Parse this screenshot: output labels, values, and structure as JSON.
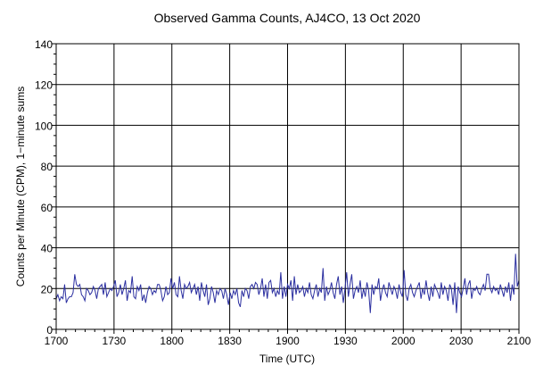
{
  "chart_data": {
    "type": "line",
    "title": "Observed Gamma Counts, AJ4CO, 13 Oct 2020",
    "xlabel": "Time (UTC)",
    "ylabel": "Counts per Minute (CPM), 1−minute sums",
    "x_ticks": [
      "1700",
      "1730",
      "1800",
      "1830",
      "1900",
      "1930",
      "2000",
      "2030",
      "2100"
    ],
    "y_ticks": [
      "0",
      "20",
      "40",
      "60",
      "80",
      "100",
      "120",
      "140"
    ],
    "xlim_minutes": [
      0,
      240
    ],
    "ylim": [
      0,
      140
    ],
    "grid": true,
    "legend": "none",
    "colors": {
      "series": "#2b2fa0",
      "grid": "#000000",
      "axis": "#000000"
    },
    "series": [
      {
        "values": [
          15,
          17,
          14,
          16,
          15,
          22,
          13,
          15,
          16,
          16,
          18,
          27,
          22,
          21,
          22,
          17,
          16,
          14,
          20,
          19,
          17,
          18,
          21,
          19,
          15,
          20,
          21,
          22,
          17,
          23,
          16,
          18,
          20,
          19,
          21,
          24,
          16,
          18,
          22,
          17,
          20,
          24,
          14,
          19,
          18,
          26,
          16,
          15,
          21,
          19,
          22,
          14,
          17,
          13,
          18,
          21,
          20,
          17,
          19,
          18,
          22,
          22,
          19,
          14,
          16,
          21,
          17,
          18,
          25,
          20,
          23,
          17,
          16,
          26,
          19,
          15,
          22,
          20,
          21,
          23,
          18,
          20,
          22,
          17,
          21,
          14,
          23,
          19,
          16,
          22,
          12,
          15,
          21,
          18,
          13,
          19,
          17,
          20,
          19,
          15,
          20,
          17,
          12,
          18,
          15,
          19,
          17,
          20,
          13,
          11,
          19,
          16,
          20,
          19,
          15,
          21,
          22,
          20,
          23,
          22,
          17,
          20,
          25,
          16,
          22,
          15,
          23,
          24,
          18,
          20,
          16,
          19,
          17,
          28,
          15,
          21,
          16,
          22,
          20,
          24,
          14,
          26,
          17,
          22,
          18,
          19,
          21,
          16,
          20,
          18,
          23,
          17,
          15,
          19,
          22,
          16,
          20,
          18,
          30,
          14,
          21,
          17,
          19,
          23,
          18,
          15,
          22,
          26,
          17,
          21,
          13,
          20,
          28,
          16,
          22,
          27,
          15,
          19,
          21,
          18,
          24,
          15,
          20,
          16,
          23,
          19,
          8,
          22,
          17,
          21,
          20,
          25,
          14,
          19,
          22,
          18,
          16,
          23,
          20,
          17,
          21,
          19,
          15,
          22,
          18,
          16,
          29,
          17,
          14,
          20,
          22,
          18,
          16,
          19,
          21,
          23,
          15,
          20,
          17,
          24,
          18,
          14,
          21,
          16,
          22,
          20,
          18,
          15,
          23,
          17,
          21,
          19,
          14,
          22,
          20,
          12,
          23,
          8,
          21,
          18,
          16,
          20,
          25,
          17,
          22,
          24,
          15,
          20,
          19,
          21,
          18,
          17,
          20,
          22,
          19,
          27,
          27,
          20,
          18,
          21,
          19,
          20,
          17,
          22,
          19,
          16,
          21,
          18,
          23,
          14,
          22,
          17,
          37,
          21,
          24
        ]
      }
    ]
  }
}
